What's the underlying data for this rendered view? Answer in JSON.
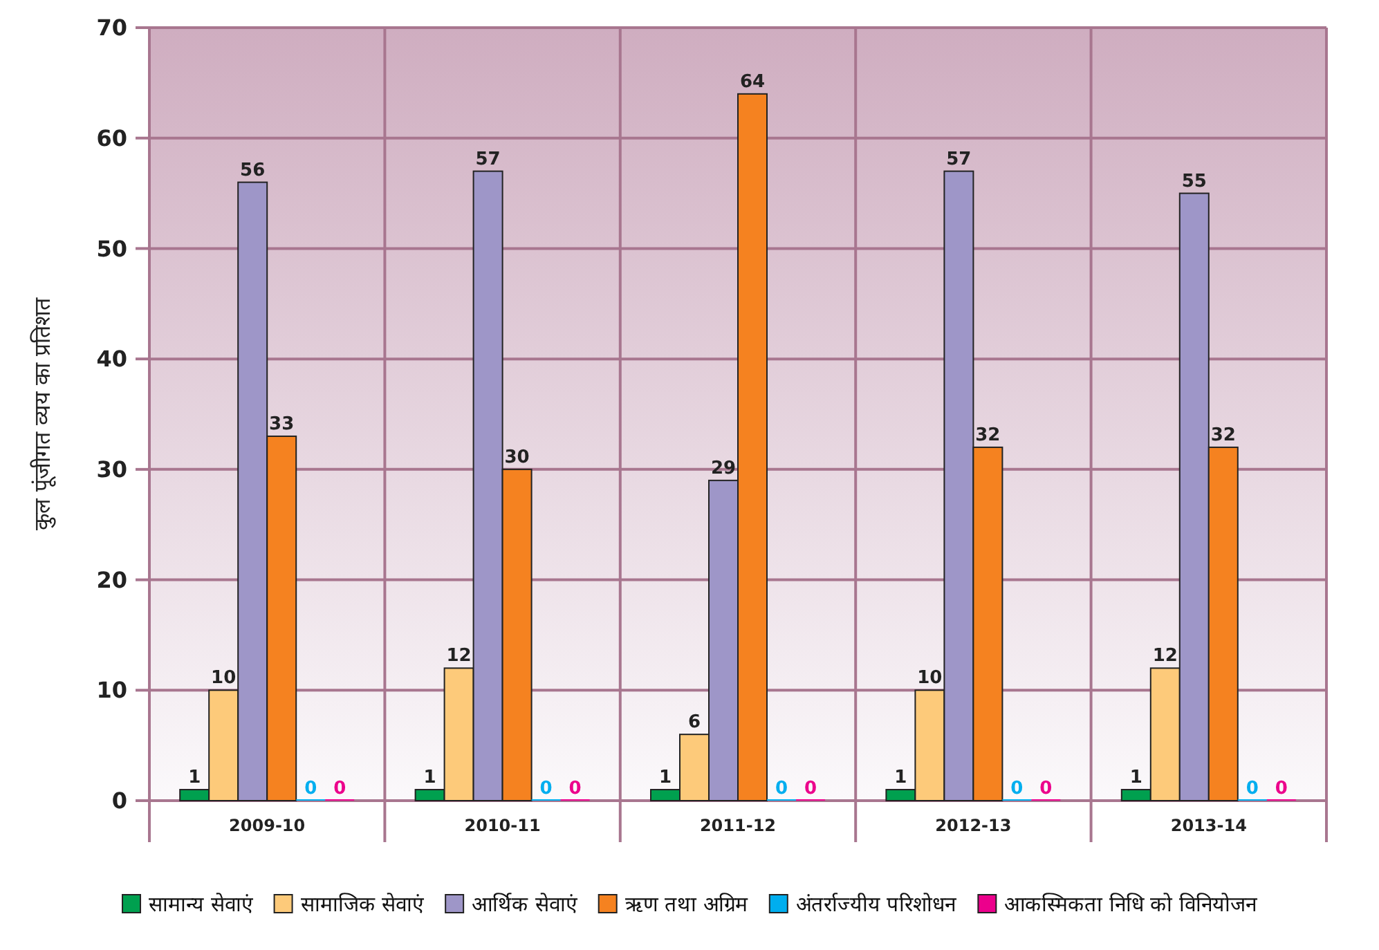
{
  "chart_data": {
    "type": "bar",
    "ylabel": "कुल पूंजीगत व्यय का प्रतिशत",
    "categories": [
      "2009-10",
      "2010-11",
      "2011-12",
      "2012-13",
      "2013-14"
    ],
    "series": [
      {
        "name": "सामान्य सेवाएं",
        "color": "#00a04f",
        "values": [
          1,
          1,
          1,
          1,
          1
        ]
      },
      {
        "name": "सामाजिक सेवाएं",
        "color": "#fdca7a",
        "values": [
          10,
          12,
          6,
          10,
          12
        ]
      },
      {
        "name": "आर्थिक सेवाएं",
        "color": "#9e96c8",
        "values": [
          56,
          57,
          29,
          57,
          55
        ]
      },
      {
        "name": "ऋण तथा अग्रिम",
        "color": "#f58220",
        "values": [
          33,
          30,
          64,
          32,
          32
        ]
      },
      {
        "name": "अंतर्राज्यीय परिशोधन",
        "color": "#00aeef",
        "values": [
          0,
          0,
          0,
          0,
          0
        ]
      },
      {
        "name": "आकस्मिकता निधि को विनियोजन",
        "color": "#ec008c",
        "values": [
          0,
          0,
          0,
          0,
          0
        ]
      }
    ],
    "ylim": [
      0,
      70
    ],
    "yticks": [
      0,
      10,
      20,
      30,
      40,
      50,
      60,
      70
    ],
    "grid": true,
    "data_labels": true,
    "legend": "bottom"
  }
}
